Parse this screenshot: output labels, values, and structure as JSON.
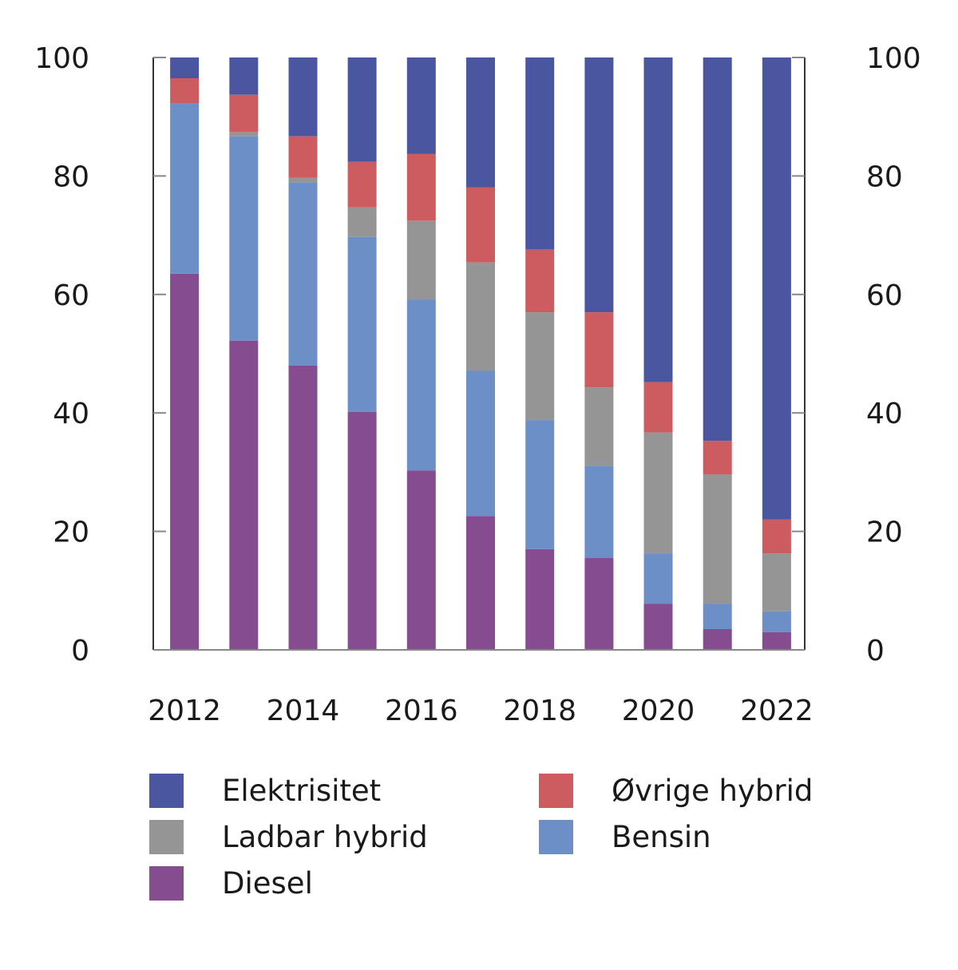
{
  "chart_data": {
    "type": "bar",
    "stacked": true,
    "title": "",
    "xlabel": "",
    "ylabel": "",
    "ylim": [
      0,
      100
    ],
    "yticks": [
      0,
      20,
      40,
      60,
      80,
      100
    ],
    "y_axis_sides": [
      "left",
      "right"
    ],
    "grid": false,
    "categories": [
      "2012",
      "2013",
      "2014",
      "2015",
      "2016",
      "2017",
      "2018",
      "2019",
      "2020",
      "2021",
      "2022"
    ],
    "xtick_labels": [
      "2012",
      "2014",
      "2016",
      "2018",
      "2020",
      "2022"
    ],
    "series": [
      {
        "name": "Diesel",
        "color": "#854C90",
        "values": [
          63.5,
          52.2,
          48.0,
          40.2,
          30.3,
          22.6,
          17.0,
          15.5,
          7.8,
          3.5,
          3.0
        ]
      },
      {
        "name": "Bensin",
        "color": "#6D8FC7",
        "values": [
          28.8,
          34.5,
          30.9,
          29.5,
          28.8,
          24.5,
          21.8,
          15.6,
          8.5,
          4.3,
          3.5
        ]
      },
      {
        "name": "Ladbar hybrid",
        "color": "#959595",
        "values": [
          0.0,
          0.7,
          0.8,
          5.0,
          13.3,
          18.3,
          18.2,
          13.2,
          20.4,
          21.8,
          9.8
        ]
      },
      {
        "name": "Øvrige hybrid",
        "color": "#CD5C61",
        "values": [
          4.2,
          6.3,
          7.0,
          7.7,
          11.3,
          12.7,
          10.6,
          12.7,
          8.5,
          5.7,
          5.7
        ]
      },
      {
        "name": "Elektrisitet",
        "color": "#4A57A0",
        "values": [
          3.5,
          6.3,
          13.3,
          17.6,
          16.3,
          21.9,
          32.4,
          43.0,
          54.8,
          64.7,
          78.0
        ]
      }
    ],
    "legend_placement": "bottom",
    "legend": [
      {
        "name": "Elektrisitet",
        "color": "#4A57A0"
      },
      {
        "name": "Øvrige hybrid",
        "color": "#CD5C61"
      },
      {
        "name": "Ladbar hybrid",
        "color": "#959595"
      },
      {
        "name": "Bensin",
        "color": "#6D8FC7"
      },
      {
        "name": "Diesel",
        "color": "#854C90"
      }
    ]
  }
}
